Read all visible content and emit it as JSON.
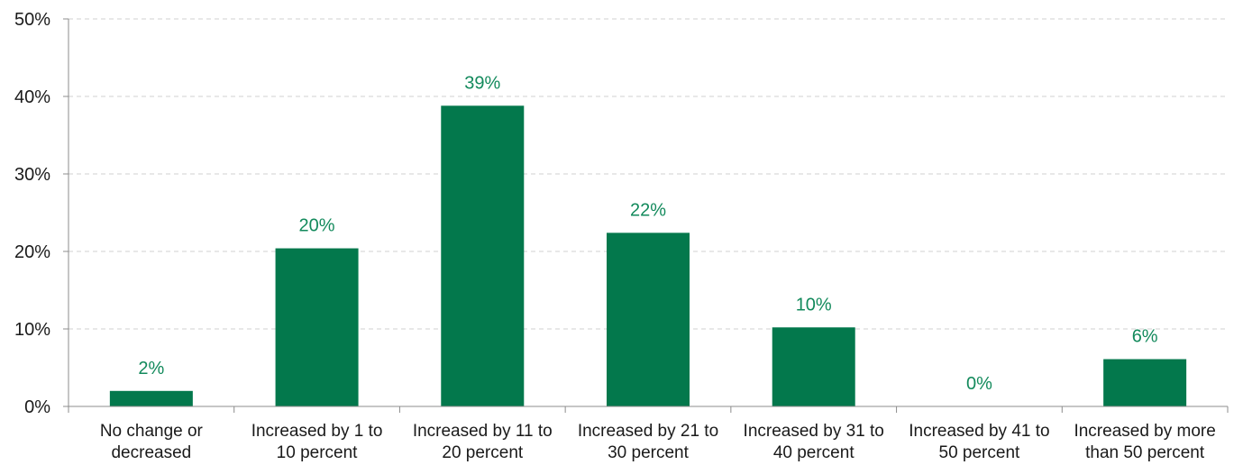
{
  "chart_data": {
    "type": "bar",
    "categories": [
      [
        "No change or",
        "decreased"
      ],
      [
        "Increased by 1 to",
        "10 percent"
      ],
      [
        "Increased by 11 to",
        "20 percent"
      ],
      [
        "Increased by 21 to",
        "30 percent"
      ],
      [
        "Increased by 31 to",
        "40 percent"
      ],
      [
        "Increased by 41 to",
        "50 percent"
      ],
      [
        "Increased by more",
        "than 50 percent"
      ]
    ],
    "values": [
      2,
      20.4,
      38.8,
      22.4,
      10.2,
      0,
      6.1
    ],
    "data_labels": [
      "2%",
      "20%",
      "39%",
      "22%",
      "10%",
      "0%",
      "6%"
    ],
    "ylim": [
      0,
      50
    ],
    "yticks": [
      0,
      10,
      20,
      30,
      40,
      50
    ],
    "ytick_labels": [
      "0%",
      "10%",
      "20%",
      "30%",
      "40%",
      "50%"
    ],
    "title": "",
    "xlabel": "",
    "ylabel": "",
    "grid": true,
    "colors": {
      "bar": "#03784c",
      "data_label": "#138a5c",
      "grid": "#d0d0d0",
      "axis": "#8c8c8c"
    }
  }
}
